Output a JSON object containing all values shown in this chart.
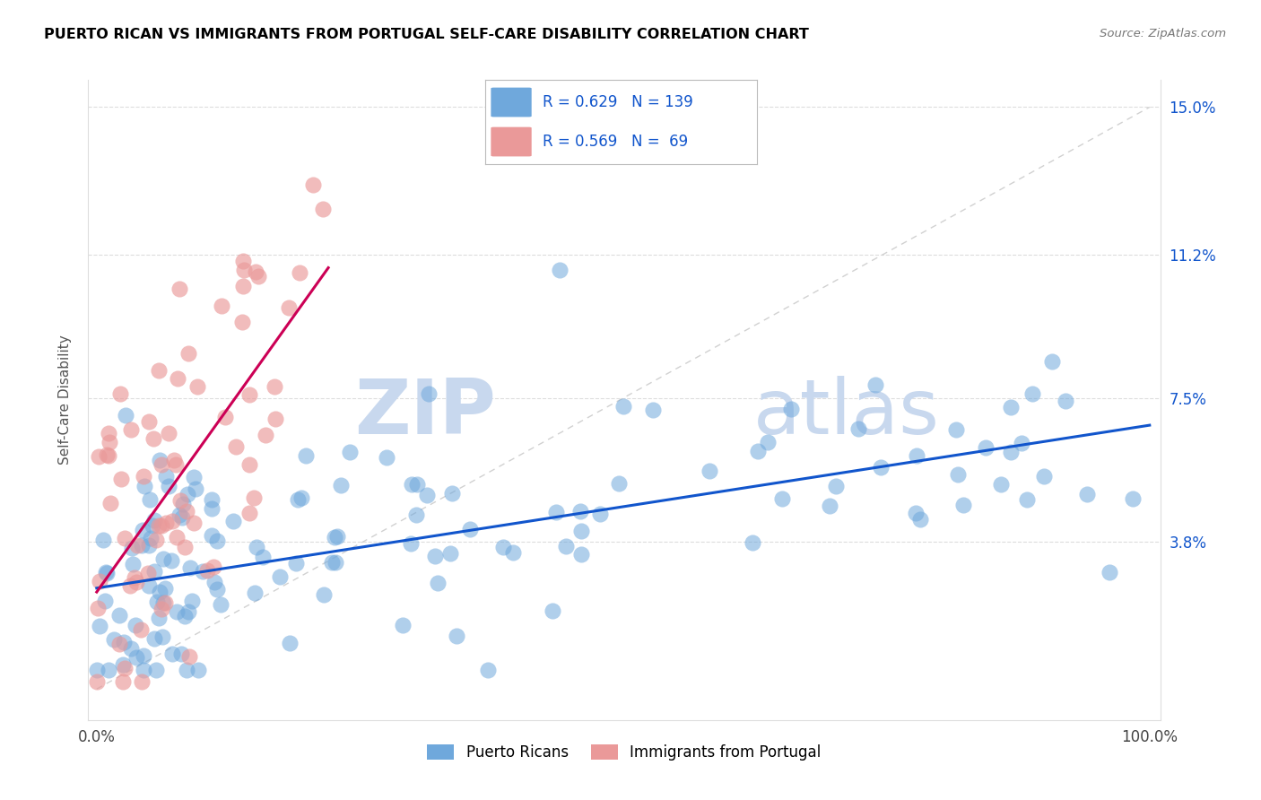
{
  "title": "PUERTO RICAN VS IMMIGRANTS FROM PORTUGAL SELF-CARE DISABILITY CORRELATION CHART",
  "source": "Source: ZipAtlas.com",
  "ylabel": "Self-Care Disability",
  "xlim": [
    0,
    1.0
  ],
  "ylim": [
    0,
    0.15
  ],
  "blue_R": 0.629,
  "blue_N": 139,
  "pink_R": 0.569,
  "pink_N": 69,
  "blue_color": "#6fa8dc",
  "pink_color": "#ea9999",
  "blue_line_color": "#1155cc",
  "pink_line_color": "#cc0055",
  "diag_line_color": "#cccccc",
  "title_color": "#000000",
  "axis_label_color": "#1155cc",
  "background_color": "#ffffff",
  "blue_slope": 0.042,
  "blue_intercept": 0.026,
  "pink_slope": 0.38,
  "pink_intercept": 0.025
}
